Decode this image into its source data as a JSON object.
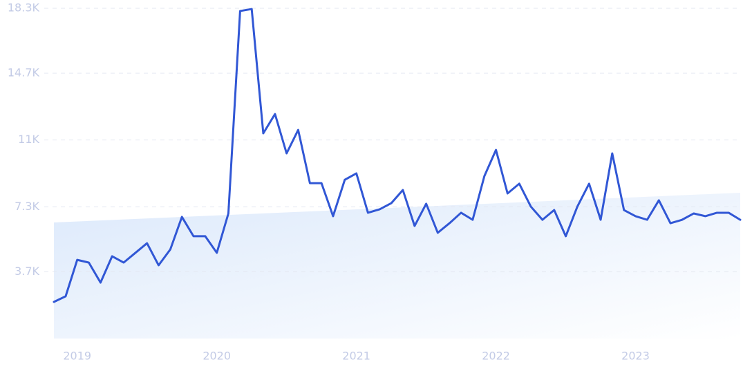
{
  "chart_data": {
    "type": "line",
    "x": [
      2018.833,
      2018.917,
      2019,
      2019.083,
      2019.167,
      2019.25,
      2019.333,
      2019.417,
      2019.5,
      2019.583,
      2019.667,
      2019.75,
      2019.833,
      2019.917,
      2020,
      2020.083,
      2020.167,
      2020.25,
      2020.333,
      2020.417,
      2020.5,
      2020.583,
      2020.667,
      2020.75,
      2020.833,
      2020.917,
      2021,
      2021.083,
      2021.167,
      2021.25,
      2021.333,
      2021.417,
      2021.5,
      2021.583,
      2021.667,
      2021.75,
      2021.833,
      2021.917,
      2022,
      2022.083,
      2022.167,
      2022.25,
      2022.333,
      2022.417,
      2022.5,
      2022.583,
      2022.667,
      2022.75,
      2022.833,
      2022.917,
      2023,
      2023.083,
      2023.167,
      2023.25,
      2023.333,
      2023.417,
      2023.5,
      2023.583,
      2023.667,
      2023.75
    ],
    "series": [
      {
        "color": "#3157d5",
        "values": [
          2030,
          2340,
          4360,
          4210,
          3100,
          4560,
          4210,
          4750,
          5280,
          4060,
          4940,
          6740,
          5670,
          5670,
          4750,
          6930,
          18150,
          18260,
          11370,
          12440,
          10260,
          11560,
          8610,
          8610,
          6780,
          8800,
          9150,
          6970,
          7160,
          7500,
          8230,
          6240,
          7470,
          5860,
          6390,
          6970,
          6580,
          9000,
          10450,
          8040,
          8580,
          7310,
          6580,
          7120,
          5670,
          7310,
          8580,
          6580,
          10260,
          7120,
          6780,
          6580,
          7660,
          6390,
          6580,
          6930,
          6780,
          6970,
          6970,
          6580
        ]
      }
    ],
    "trend": [
      6430,
      8080
    ],
    "xlim": [
      2018.833,
      2023.75
    ],
    "xticks": [
      2019,
      2020,
      2021,
      2022,
      2023
    ],
    "ylim": [
      0,
      18300
    ],
    "yticks": [
      {
        "value": 3700,
        "label": "3.7K"
      },
      {
        "value": 7300,
        "label": "7.3K"
      },
      {
        "value": 11000,
        "label": "11K"
      },
      {
        "value": 14700,
        "label": "14.7K"
      },
      {
        "value": 18300,
        "label": "18.3K"
      }
    ],
    "grid": true
  }
}
